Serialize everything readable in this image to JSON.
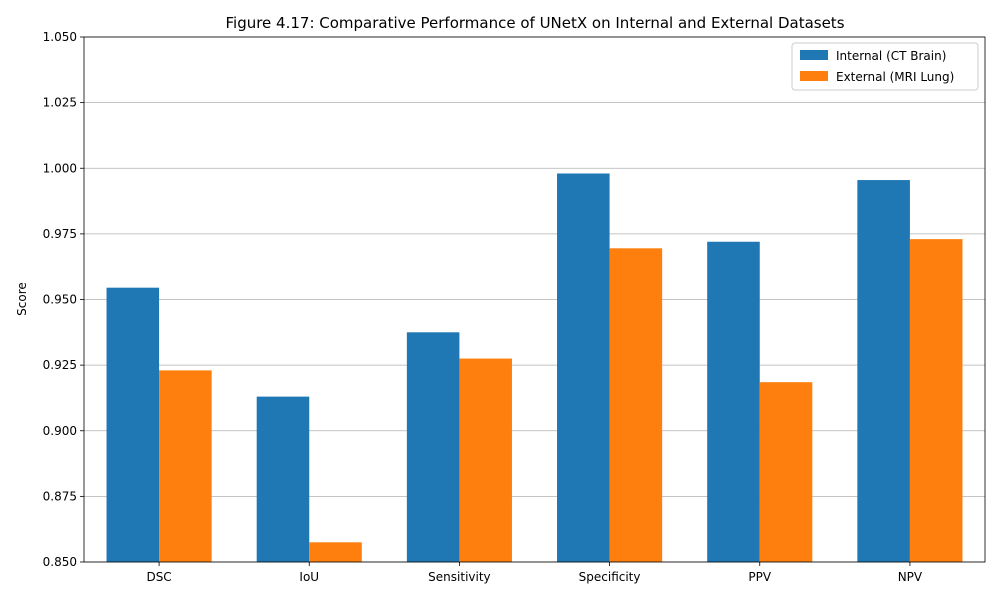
{
  "chart_data": {
    "type": "bar",
    "title": "Figure 4.17: Comparative Performance of UNetX on Internal and External Datasets",
    "xlabel": "",
    "ylabel": "Score",
    "ylim": [
      0.85,
      1.05
    ],
    "yticks": [
      "0.850",
      "0.875",
      "0.900",
      "0.925",
      "0.950",
      "0.975",
      "1.000",
      "1.025",
      "1.050"
    ],
    "categories": [
      "DSC",
      "IoU",
      "Sensitivity",
      "Specificity",
      "PPV",
      "NPV"
    ],
    "series": [
      {
        "name": "Internal (CT Brain)",
        "color": "#1f77b4",
        "values": [
          0.9545,
          0.913,
          0.9375,
          0.998,
          0.972,
          0.9955
        ]
      },
      {
        "name": "External (MRI Lung)",
        "color": "#ff7f0e",
        "values": [
          0.923,
          0.8575,
          0.9275,
          0.9695,
          0.9185,
          0.973
        ]
      }
    ],
    "grid": "horizontal",
    "legend_position": "top-right"
  }
}
